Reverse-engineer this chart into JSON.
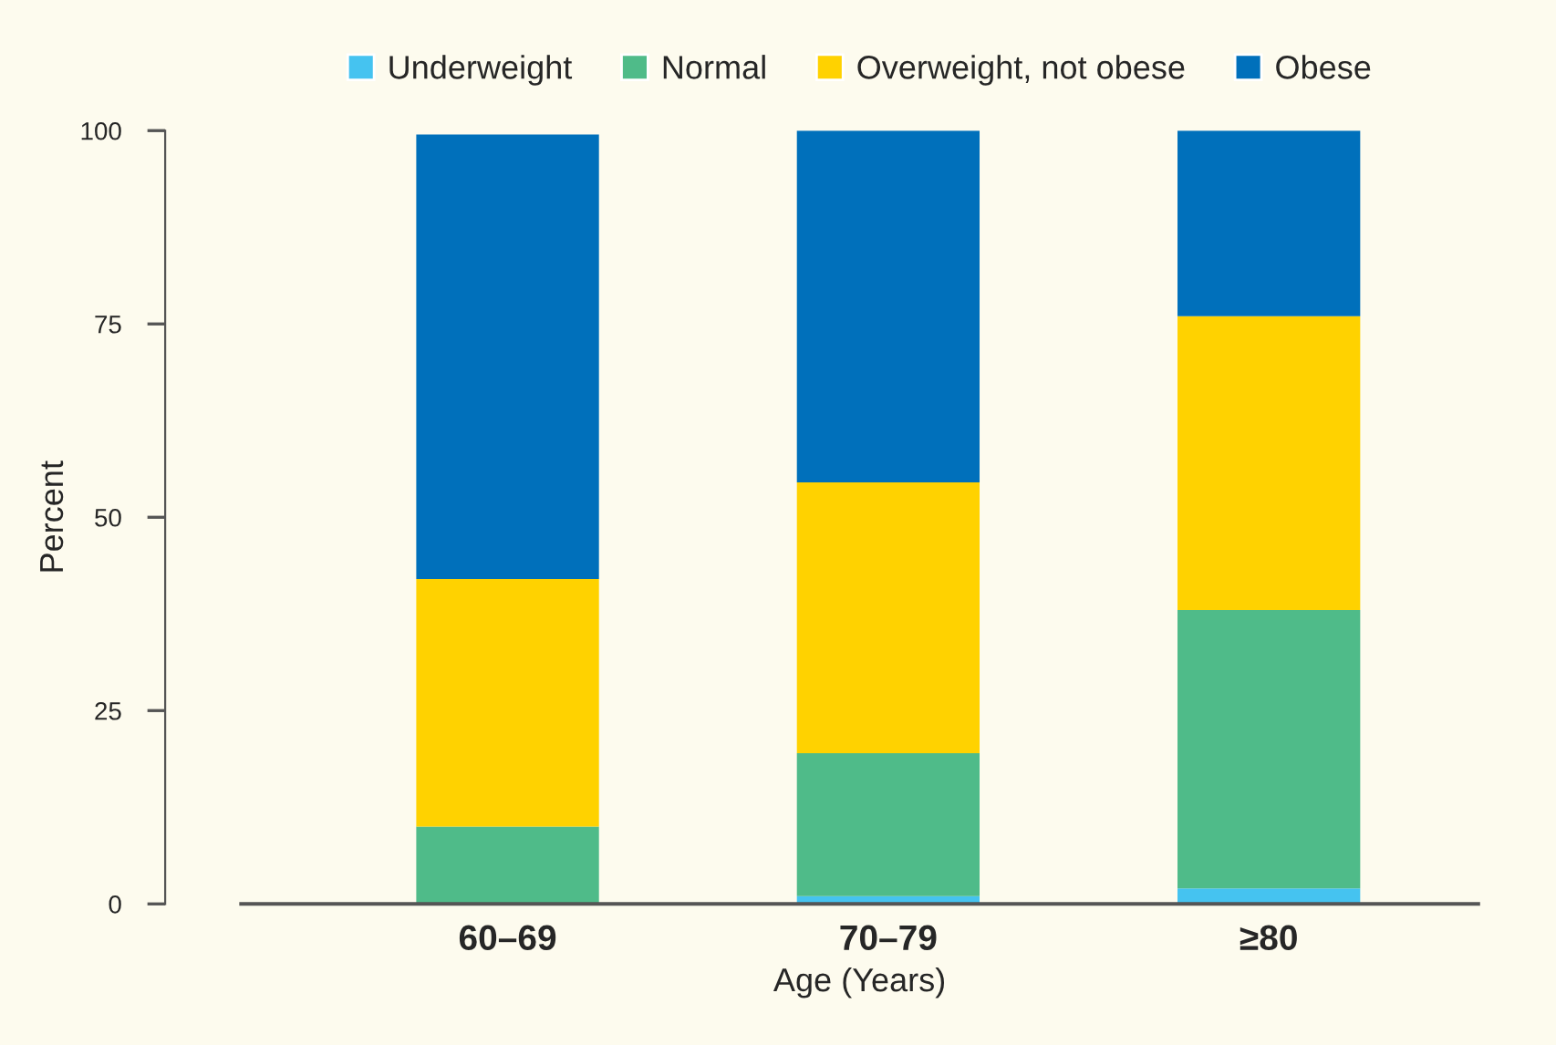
{
  "chart_data": {
    "type": "bar",
    "stacked": true,
    "xlabel": "Age (Years)",
    "ylabel": "Percent",
    "categories": [
      "60–69",
      "70–79",
      "≥80"
    ],
    "series": [
      {
        "name": "Underweight",
        "color": "#45c3f0",
        "values": [
          0,
          1,
          2
        ]
      },
      {
        "name": "Normal",
        "color": "#4fbb89",
        "values": [
          10,
          18.5,
          36
        ]
      },
      {
        "name": "Overweight, not obese",
        "color": "#ffd200",
        "values": [
          32,
          35,
          38
        ]
      },
      {
        "name": "Obese",
        "color": "#0070bb",
        "values": [
          57.5,
          45.5,
          24
        ]
      }
    ],
    "ylim": [
      0,
      100
    ],
    "yticks": [
      0,
      25,
      50,
      75,
      100
    ],
    "grid": false,
    "legend": "top"
  }
}
